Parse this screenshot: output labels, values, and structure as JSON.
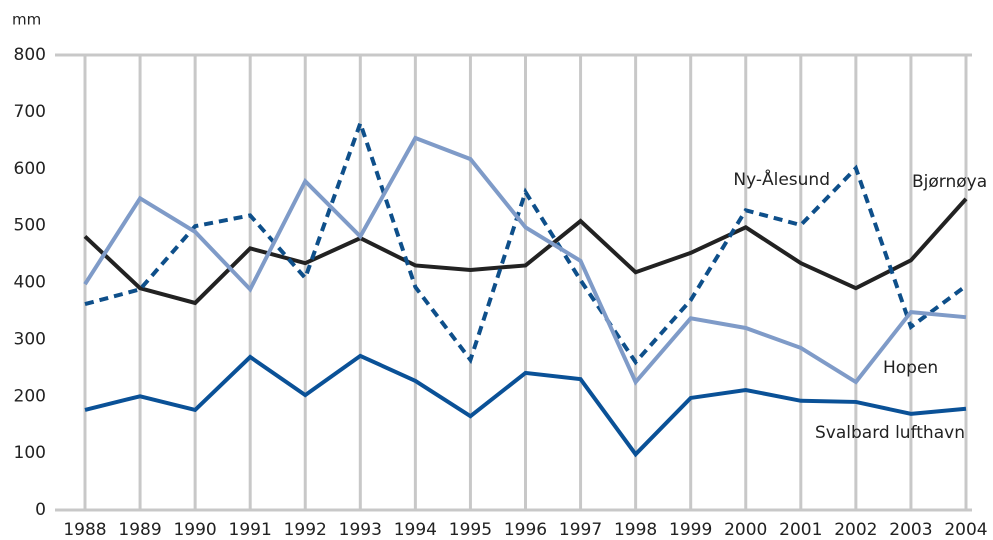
{
  "chart_data": {
    "type": "line",
    "y_unit": "mm",
    "categories": [
      "1988",
      "1989",
      "1990",
      "1991",
      "1992",
      "1993",
      "1994",
      "1995",
      "1996",
      "1997",
      "1998",
      "1999",
      "2000",
      "2001",
      "2002",
      "2003",
      "2004"
    ],
    "series": [
      {
        "name": "Bjørnøya",
        "color": "#222222",
        "dashed": false,
        "values": [
          481,
          390,
          364,
          460,
          434,
          478,
          430,
          422,
          430,
          508,
          418,
          452,
          497,
          434,
          390,
          439,
          547
        ]
      },
      {
        "name": "Ny-Ålesund",
        "color": "#0e4f8a",
        "dashed": true,
        "values": [
          362,
          388,
          499,
          518,
          408,
          680,
          392,
          264,
          559,
          404,
          260,
          369,
          527,
          501,
          601,
          322,
          394
        ]
      },
      {
        "name": "Hopen",
        "color": "#7f9bc8",
        "dashed": false,
        "values": [
          397,
          548,
          489,
          388,
          578,
          481,
          654,
          617,
          497,
          438,
          225,
          337,
          320,
          285,
          225,
          348,
          339
        ]
      },
      {
        "name": "Svalbard lufthavn",
        "color": "#0a5197",
        "dashed": false,
        "values": [
          176,
          200,
          176,
          269,
          202,
          271,
          227,
          165,
          241,
          230,
          98,
          197,
          211,
          192,
          190,
          169,
          178
        ]
      }
    ],
    "ylim": [
      0,
      800
    ],
    "yticks": [
      0,
      100,
      200,
      300,
      400,
      500,
      600,
      700,
      800
    ],
    "grid": "x"
  }
}
